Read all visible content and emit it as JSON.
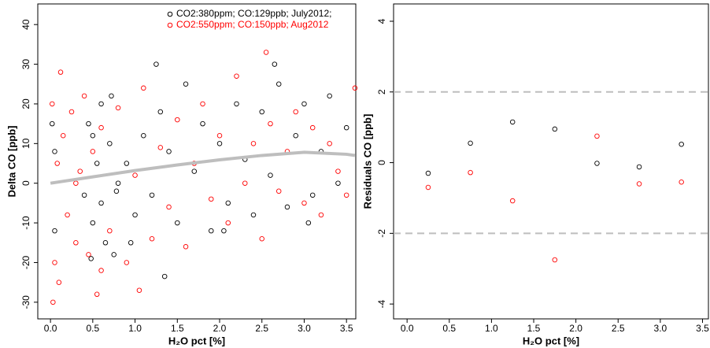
{
  "chart_data": [
    {
      "type": "scatter",
      "ylabel": "Delta CO [ppb]",
      "xlabel": "H₂O pct [%]",
      "xlim": [
        -0.15,
        3.61
      ],
      "ylim": [
        -34.2,
        45.2
      ],
      "xticks": [
        {
          "value": 0,
          "label": "0.0"
        },
        0.5,
        {
          "value": 1,
          "label": "1.0"
        },
        1.5,
        {
          "value": 2,
          "label": "2.0"
        },
        2.5,
        {
          "value": 3,
          "label": "3.0"
        },
        3.5
      ],
      "yticks": [
        -30,
        -20,
        -10,
        0,
        10,
        20,
        30,
        40
      ],
      "legend": "top-right",
      "series": [
        {
          "name": "CO2:380ppm; CO:129ppb; July2012;",
          "color": "#000000",
          "x": [
            0.45,
            0.5,
            0.55,
            0.6,
            0.65,
            0.7,
            0.75,
            0.8,
            0.5,
            0.6,
            0.72,
            0.48,
            0.05,
            0.05,
            0.02,
            0.9,
            1.0,
            1.1,
            1.2,
            1.3,
            1.35,
            1.4,
            1.5,
            1.6,
            1.7,
            1.8,
            1.9,
            2.0,
            2.1,
            2.2,
            2.3,
            2.4,
            2.5,
            2.6,
            2.7,
            2.8,
            2.9,
            3.0,
            3.1,
            3.2,
            3.3,
            3.4,
            3.5,
            1.25,
            0.95,
            2.05,
            2.65,
            3.05,
            0.4,
            0.78
          ],
          "values": [
            15,
            -10,
            5,
            20,
            -15,
            10,
            -18,
            0,
            12,
            -5,
            22,
            -19,
            8,
            -12,
            15,
            5,
            -8,
            12,
            -3,
            18,
            -23.5,
            8,
            -10,
            25,
            3,
            15,
            -12,
            10,
            -5,
            20,
            6,
            -8,
            18,
            2,
            25,
            -6,
            12,
            20,
            -3,
            8,
            22,
            0,
            14,
            30,
            -15,
            -12,
            30,
            -10,
            -3,
            -2
          ]
        },
        {
          "name": "CO2:550ppm; CO:150ppb; Aug2012",
          "color": "#ff0000",
          "x": [
            0.02,
            0.05,
            0.08,
            0.1,
            0.03,
            0.15,
            0.2,
            0.25,
            0.3,
            0.35,
            0.4,
            0.45,
            0.5,
            0.55,
            0.6,
            0.7,
            0.8,
            0.9,
            1.0,
            1.1,
            1.2,
            1.3,
            1.4,
            1.5,
            1.6,
            1.7,
            1.8,
            1.9,
            2.0,
            2.1,
            2.2,
            2.3,
            2.4,
            2.5,
            2.55,
            2.6,
            2.7,
            2.8,
            2.9,
            3.0,
            3.1,
            3.2,
            3.3,
            3.4,
            3.5,
            3.6,
            0.12,
            0.6,
            1.05,
            0.3
          ],
          "values": [
            20,
            -20,
            5,
            -25,
            -30,
            12,
            -8,
            18,
            -15,
            3,
            22,
            -18,
            8,
            -28,
            14,
            -12,
            19,
            -20,
            2,
            24,
            -14,
            9,
            -6,
            16,
            -16,
            5,
            20,
            -4,
            12,
            -10,
            27,
            0,
            10,
            -14,
            33,
            15,
            -2,
            8,
            18,
            -5,
            14,
            -8,
            10,
            3,
            -3,
            24,
            28,
            -22,
            -27,
            0
          ]
        }
      ],
      "fit": {
        "color": "#bebebe",
        "x": [
          0,
          0.5,
          1,
          1.5,
          2,
          2.5,
          3,
          3.5,
          3.6
        ],
        "values": [
          0,
          1.6,
          3.2,
          4.6,
          5.9,
          7.0,
          7.8,
          7.3,
          7.0
        ]
      }
    },
    {
      "type": "scatter",
      "ylabel": "Residuals CO [ppb]",
      "xlabel": "H₂O pct [%]",
      "xlim": [
        -0.16,
        3.57
      ],
      "ylim": [
        -4.42,
        4.49
      ],
      "xticks": [
        {
          "value": 0,
          "label": "0.0"
        },
        0.5,
        {
          "value": 1,
          "label": "1.0"
        },
        1.5,
        {
          "value": 2,
          "label": "2.0"
        },
        2.5,
        {
          "value": 3,
          "label": "3.0"
        },
        3.5
      ],
      "yticks": [
        -4,
        -2,
        0,
        2,
        4
      ],
      "hlines": {
        "color": "#bebebe",
        "values": [
          2,
          -2
        ]
      },
      "series": [
        {
          "color": "#000000",
          "x": [
            0.25,
            0.75,
            1.25,
            1.75,
            2.25,
            2.75,
            3.25
          ],
          "values": [
            -0.3,
            0.55,
            1.15,
            0.95,
            -0.02,
            -0.12,
            0.52
          ]
        },
        {
          "color": "#ff0000",
          "x": [
            0.25,
            0.75,
            1.25,
            1.75,
            2.25,
            2.75,
            3.25
          ],
          "values": [
            -0.7,
            -0.28,
            -1.08,
            -2.75,
            0.75,
            -0.6,
            -0.55
          ]
        }
      ]
    }
  ]
}
